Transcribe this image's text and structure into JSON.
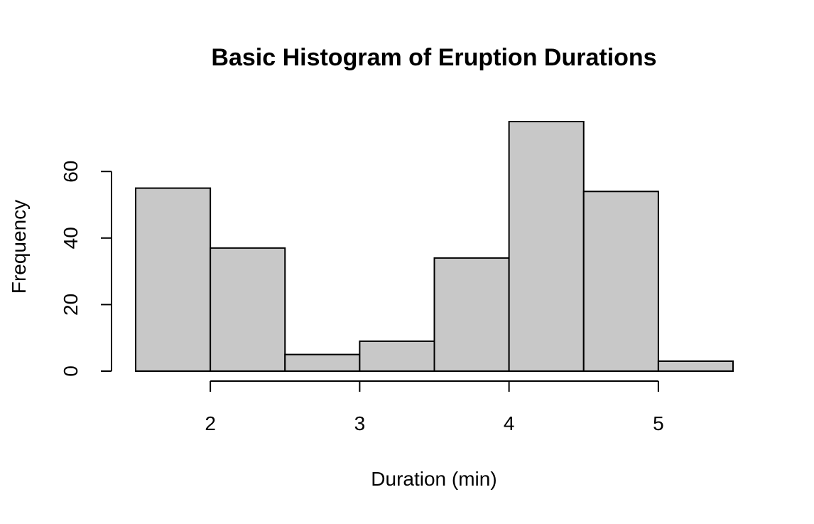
{
  "chart_data": {
    "type": "bar",
    "title": "Basic Histogram of Eruption Durations",
    "xlabel": "Duration (min)",
    "ylabel": "Frequency",
    "bins": [
      {
        "start": 1.5,
        "end": 2.0,
        "count": 55
      },
      {
        "start": 2.0,
        "end": 2.5,
        "count": 37
      },
      {
        "start": 2.5,
        "end": 3.0,
        "count": 5
      },
      {
        "start": 3.0,
        "end": 3.5,
        "count": 9
      },
      {
        "start": 3.5,
        "end": 4.0,
        "count": 34
      },
      {
        "start": 4.0,
        "end": 4.5,
        "count": 75
      },
      {
        "start": 4.5,
        "end": 5.0,
        "count": 54
      },
      {
        "start": 5.0,
        "end": 5.5,
        "count": 3
      }
    ],
    "x_ticks": [
      2,
      3,
      4,
      5
    ],
    "y_ticks": [
      0,
      20,
      40,
      60
    ],
    "xlim": [
      1.5,
      5.5
    ],
    "ylim": [
      0,
      75
    ],
    "grid": false,
    "colors": {
      "bar_fill": "#c8c8c8",
      "bar_stroke": "#000000",
      "axis": "#000000"
    }
  }
}
